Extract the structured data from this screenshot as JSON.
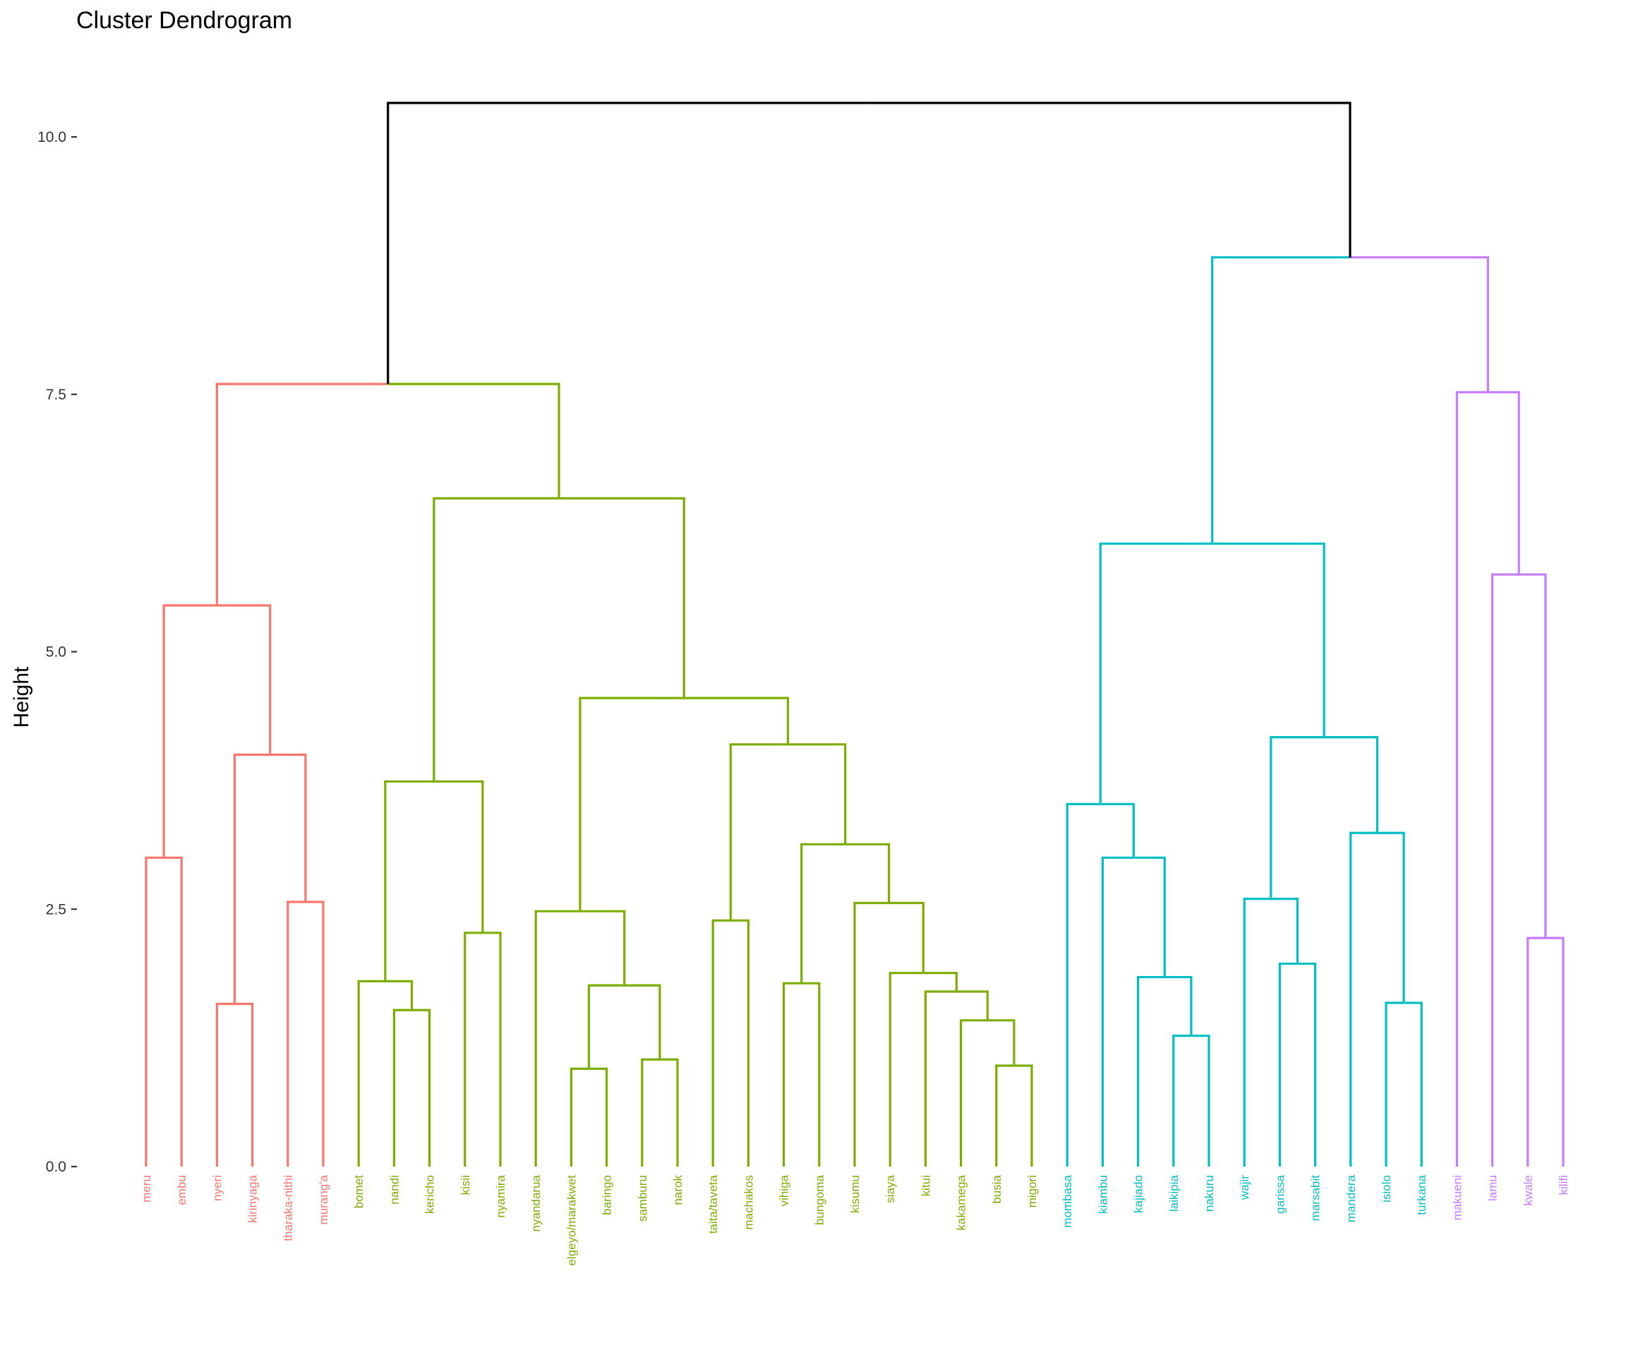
{
  "chart_data": {
    "type": "dendrogram",
    "title": "Cluster Dendrogram",
    "ylabel": "Height",
    "xlabel": "",
    "ylim": [
      0,
      10.5
    ],
    "yticks": [
      0.0,
      2.5,
      5.0,
      7.5,
      10.0
    ],
    "ytick_labels": [
      "0.0",
      "2.5",
      "5.0",
      "7.5",
      "10.0"
    ],
    "grid": false,
    "leaves": [
      {
        "label": "meru",
        "cluster": 1
      },
      {
        "label": "embu",
        "cluster": 1
      },
      {
        "label": "nyeri",
        "cluster": 1
      },
      {
        "label": "kirinyaga",
        "cluster": 1
      },
      {
        "label": "tharaka-nithi",
        "cluster": 1
      },
      {
        "label": "murang'a",
        "cluster": 1
      },
      {
        "label": "bomet",
        "cluster": 2
      },
      {
        "label": "nandi",
        "cluster": 2
      },
      {
        "label": "kericho",
        "cluster": 2
      },
      {
        "label": "kisii",
        "cluster": 2
      },
      {
        "label": "nyamira",
        "cluster": 2
      },
      {
        "label": "nyandarua",
        "cluster": 2
      },
      {
        "label": "elgeyo/marakwet",
        "cluster": 2
      },
      {
        "label": "baringo",
        "cluster": 2
      },
      {
        "label": "samburu",
        "cluster": 2
      },
      {
        "label": "narok",
        "cluster": 2
      },
      {
        "label": "taita/taveta",
        "cluster": 2
      },
      {
        "label": "machakos",
        "cluster": 2
      },
      {
        "label": "vihiga",
        "cluster": 2
      },
      {
        "label": "bungoma",
        "cluster": 2
      },
      {
        "label": "kisumu",
        "cluster": 2
      },
      {
        "label": "siaya",
        "cluster": 2
      },
      {
        "label": "kitui",
        "cluster": 2
      },
      {
        "label": "kakamega",
        "cluster": 2
      },
      {
        "label": "busia",
        "cluster": 2
      },
      {
        "label": "migori",
        "cluster": 2
      },
      {
        "label": "mombasa",
        "cluster": 3
      },
      {
        "label": "kiambu",
        "cluster": 3
      },
      {
        "label": "kajiado",
        "cluster": 3
      },
      {
        "label": "laikipia",
        "cluster": 3
      },
      {
        "label": "nakuru",
        "cluster": 3
      },
      {
        "label": "wajir",
        "cluster": 3
      },
      {
        "label": "garissa",
        "cluster": 3
      },
      {
        "label": "marsabit",
        "cluster": 3
      },
      {
        "label": "mandera",
        "cluster": 3
      },
      {
        "label": "isiolo",
        "cluster": 3
      },
      {
        "label": "turkana",
        "cluster": 3
      },
      {
        "label": "makueni",
        "cluster": 4
      },
      {
        "label": "lamu",
        "cluster": 4
      },
      {
        "label": "kwale",
        "cluster": 4
      },
      {
        "label": "kilifi",
        "cluster": 4
      }
    ],
    "merges": [
      {
        "id": "A1",
        "left": "meru",
        "right": "embu",
        "height": 3.0,
        "cluster": 1
      },
      {
        "id": "A2",
        "left": "nyeri",
        "right": "kirinyaga",
        "height": 1.58,
        "cluster": 1
      },
      {
        "id": "A3",
        "left": "tharaka-nithi",
        "right": "murang'a",
        "height": 2.57,
        "cluster": 1
      },
      {
        "id": "A4",
        "left": "A2",
        "right": "A3",
        "height": 4.0,
        "cluster": 1
      },
      {
        "id": "A5",
        "left": "A1",
        "right": "A4",
        "height": 5.45,
        "cluster": 1
      },
      {
        "id": "B1",
        "left": "nandi",
        "right": "kericho",
        "height": 1.52,
        "cluster": 2
      },
      {
        "id": "B2",
        "left": "bomet",
        "right": "B1",
        "height": 1.8,
        "cluster": 2
      },
      {
        "id": "B3",
        "left": "kisii",
        "right": "nyamira",
        "height": 2.27,
        "cluster": 2
      },
      {
        "id": "B4",
        "left": "B2",
        "right": "B3",
        "height": 3.74,
        "cluster": 2
      },
      {
        "id": "B5",
        "left": "elgeyo/marakwet",
        "right": "baringo",
        "height": 0.95,
        "cluster": 2
      },
      {
        "id": "B6",
        "left": "samburu",
        "right": "narok",
        "height": 1.04,
        "cluster": 2
      },
      {
        "id": "B7",
        "left": "B5",
        "right": "B6",
        "height": 1.76,
        "cluster": 2
      },
      {
        "id": "B8",
        "left": "nyandarua",
        "right": "B7",
        "height": 2.48,
        "cluster": 2
      },
      {
        "id": "B9",
        "left": "taita/taveta",
        "right": "machakos",
        "height": 2.39,
        "cluster": 2
      },
      {
        "id": "B10",
        "left": "vihiga",
        "right": "bungoma",
        "height": 1.78,
        "cluster": 2
      },
      {
        "id": "B11",
        "left": "busia",
        "right": "migori",
        "height": 0.98,
        "cluster": 2
      },
      {
        "id": "B12",
        "left": "kakamega",
        "right": "B11",
        "height": 1.42,
        "cluster": 2
      },
      {
        "id": "B13",
        "left": "kitui",
        "right": "B12",
        "height": 1.7,
        "cluster": 2
      },
      {
        "id": "B14",
        "left": "siaya",
        "right": "B13",
        "height": 1.88,
        "cluster": 2
      },
      {
        "id": "B15",
        "left": "kisumu",
        "right": "B14",
        "height": 2.56,
        "cluster": 2
      },
      {
        "id": "B16",
        "left": "B10",
        "right": "B15",
        "height": 3.13,
        "cluster": 2
      },
      {
        "id": "B17",
        "left": "B9",
        "right": "B16",
        "height": 4.1,
        "cluster": 2
      },
      {
        "id": "B18",
        "left": "B8",
        "right": "B17",
        "height": 4.55,
        "cluster": 2
      },
      {
        "id": "B19",
        "left": "B4",
        "right": "B18",
        "height": 6.49,
        "cluster": 2
      },
      {
        "id": "AB",
        "left": "A5",
        "right": "B19",
        "height": 7.6,
        "cluster": 0
      },
      {
        "id": "C1",
        "left": "laikipia",
        "right": "nakuru",
        "height": 1.27,
        "cluster": 3
      },
      {
        "id": "C2",
        "left": "kajiado",
        "right": "C1",
        "height": 1.84,
        "cluster": 3
      },
      {
        "id": "C3",
        "left": "kiambu",
        "right": "C2",
        "height": 3.0,
        "cluster": 3
      },
      {
        "id": "C4",
        "left": "mombasa",
        "right": "C3",
        "height": 3.52,
        "cluster": 3
      },
      {
        "id": "C5",
        "left": "garissa",
        "right": "marsabit",
        "height": 1.97,
        "cluster": 3
      },
      {
        "id": "C6",
        "left": "wajir",
        "right": "C5",
        "height": 2.6,
        "cluster": 3
      },
      {
        "id": "C7",
        "left": "isiolo",
        "right": "turkana",
        "height": 1.59,
        "cluster": 3
      },
      {
        "id": "C8",
        "left": "mandera",
        "right": "C7",
        "height": 3.24,
        "cluster": 3
      },
      {
        "id": "C9",
        "left": "C6",
        "right": "C8",
        "height": 4.17,
        "cluster": 3
      },
      {
        "id": "C10",
        "left": "C4",
        "right": "C9",
        "height": 6.05,
        "cluster": 3
      },
      {
        "id": "D1",
        "left": "kwale",
        "right": "kilifi",
        "height": 2.22,
        "cluster": 4
      },
      {
        "id": "D2",
        "left": "lamu",
        "right": "D1",
        "height": 5.75,
        "cluster": 4
      },
      {
        "id": "D3",
        "left": "makueni",
        "right": "D2",
        "height": 7.52,
        "cluster": 4
      },
      {
        "id": "CD",
        "left": "C10",
        "right": "D3",
        "height": 8.83,
        "cluster": 0
      },
      {
        "id": "ROOT",
        "left": "AB",
        "right": "CD",
        "height": 10.33,
        "cluster": 0
      }
    ],
    "colors": {
      "0": "#000000",
      "1": "#F8766D",
      "2": "#7CAE00",
      "3": "#00BFC4",
      "4": "#C77CFF"
    }
  }
}
